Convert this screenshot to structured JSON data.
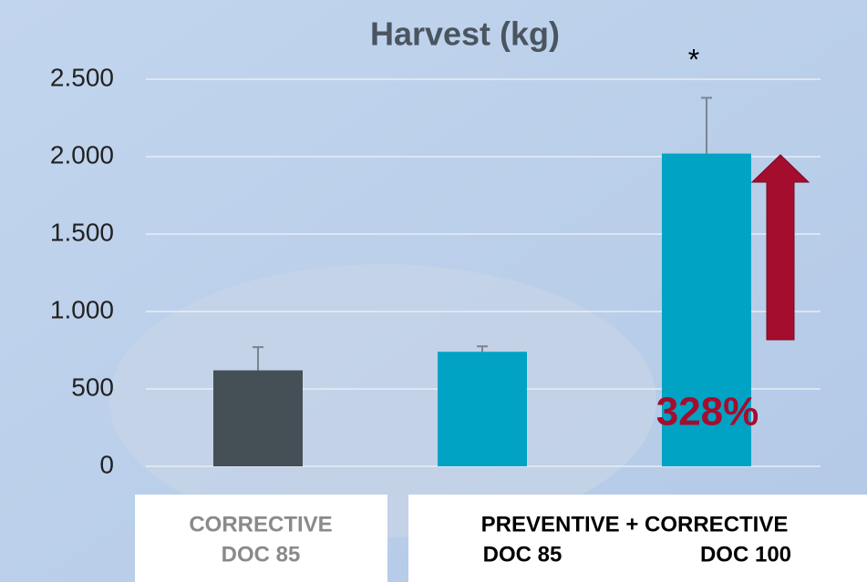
{
  "chart_data": {
    "type": "bar",
    "title": "Harvest (kg)",
    "categories": [
      "DOC 85",
      "DOC 85",
      "DOC 100"
    ],
    "groups": [
      "CORRECTIVE",
      "PREVENTIVE + CORRECTIVE"
    ],
    "values": [
      620,
      740,
      2020
    ],
    "errors": [
      150,
      35,
      360
    ],
    "colors": [
      "#454f56",
      "#00a3c4",
      "#00a3c4"
    ],
    "ylim": [
      0,
      2500
    ],
    "yticks": [
      0,
      500,
      {
        "value": 1000,
        "label": "1.000"
      },
      {
        "value": 1500,
        "label": "1.500"
      },
      {
        "value": 2000,
        "label": "2.000"
      },
      {
        "value": 2500,
        "label": "2.500"
      }
    ],
    "grid": true,
    "annotations": [
      "*",
      "328%"
    ]
  }
}
